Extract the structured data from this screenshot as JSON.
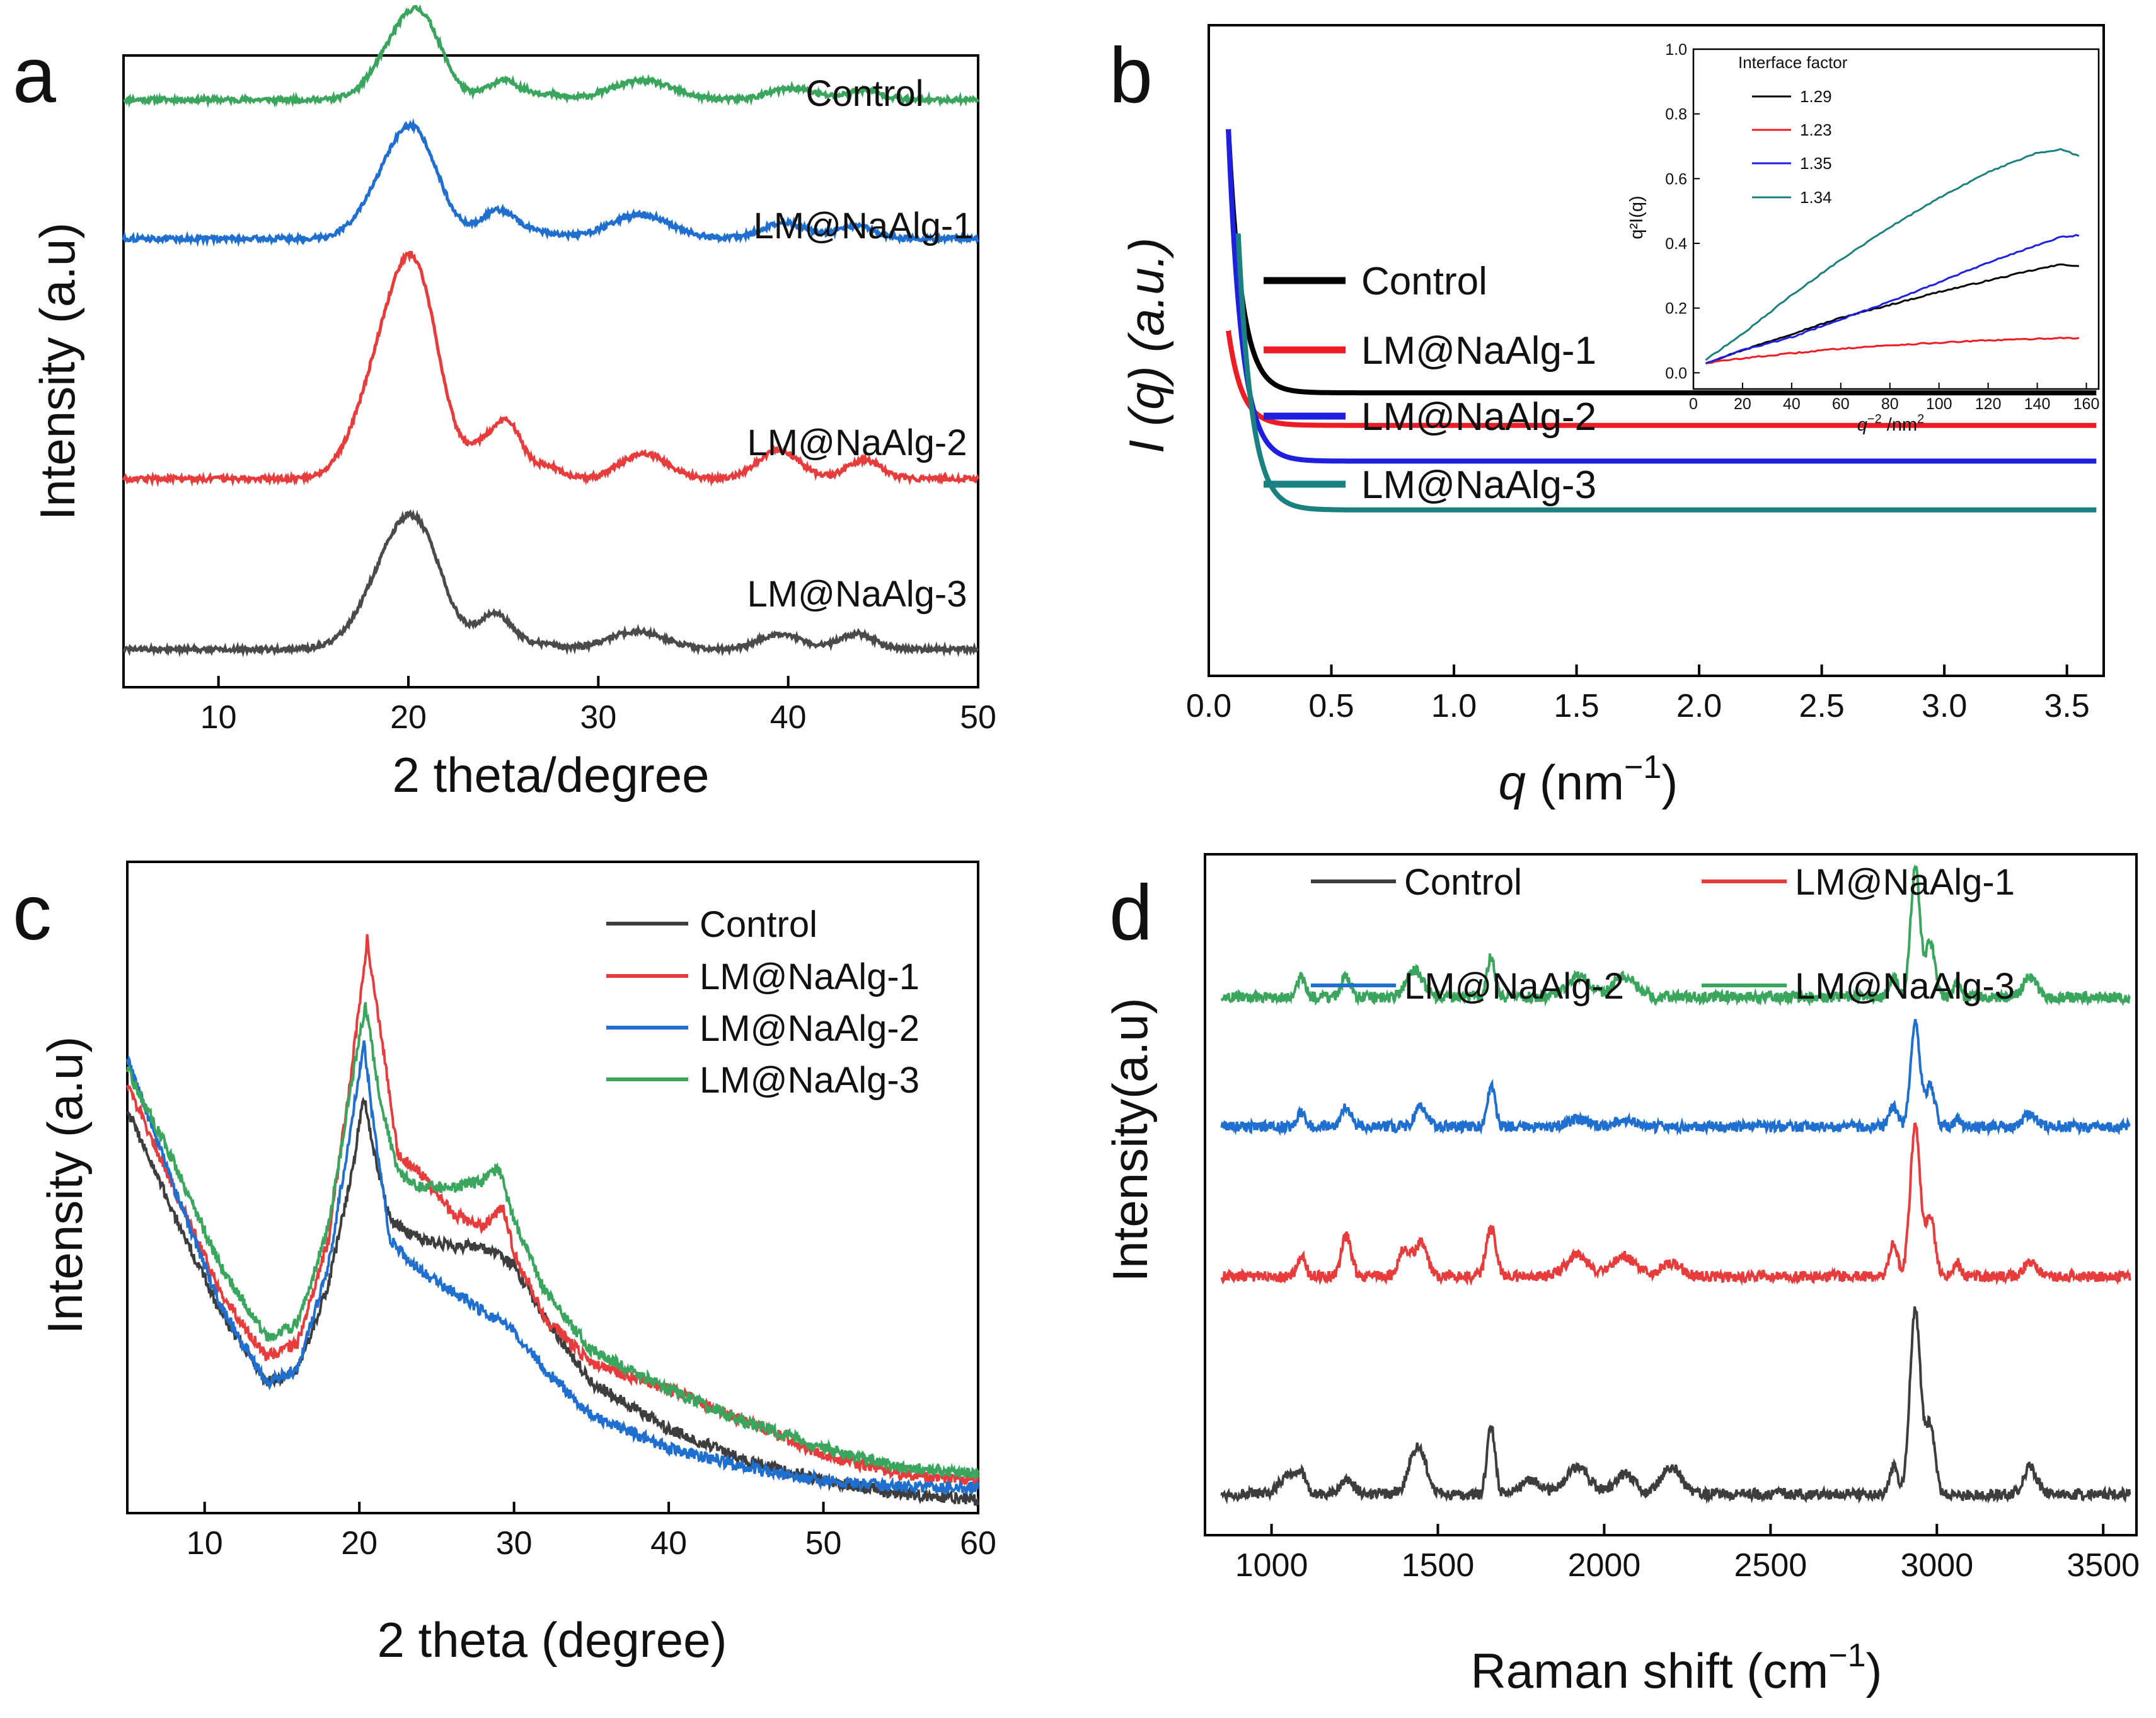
{
  "figure": {
    "panels": [
      "a",
      "b",
      "c",
      "d"
    ]
  },
  "colors": {
    "control_a": "#3aa55c",
    "nalg1_a": "#1f6fd0",
    "nalg2_a": "#e83b3b",
    "nalg3_a": "#4a4a4a",
    "control_b": "#000000",
    "nalg1_b": "#ee1c24",
    "nalg2_b": "#1f1fe0",
    "nalg3_b": "#1a8080",
    "control_c": "#3d3d3d",
    "nalg1_c": "#e83b3b",
    "nalg2_c": "#1f6fd0",
    "nalg3_c": "#3aa55c"
  },
  "chart_data": [
    {
      "id": "a",
      "type": "line",
      "title": "",
      "xlabel": "2 theta/degree",
      "ylabel": "Intensity (a.u)",
      "xlim": [
        5,
        50
      ],
      "xticks": [
        10,
        20,
        30,
        40,
        50
      ],
      "baselines": {
        "Control": 0.93,
        "LM@NaAlg-1": 0.71,
        "LM@NaAlg-2": 0.33,
        "LM@NaAlg-3": 0.06
      },
      "peaks": {
        "Control": [
          [
            19.3,
            0.07,
            1.2
          ],
          [
            20.8,
            0.105,
            1.1
          ],
          [
            25,
            0.03,
            0.9
          ],
          [
            27.2,
            0.008,
            0.8
          ],
          [
            32.3,
            0.03,
            1.6
          ],
          [
            40.2,
            0.018,
            1.2
          ],
          [
            44,
            0.015,
            0.9
          ]
        ],
        "LM@NaAlg-1": [
          [
            19.2,
            0.095,
            1.4
          ],
          [
            20.6,
            0.11,
            1.2
          ],
          [
            24.8,
            0.045,
            1.0
          ],
          [
            27.3,
            0.008,
            0.8
          ],
          [
            32.2,
            0.038,
            1.6
          ],
          [
            39.8,
            0.025,
            1.2
          ],
          [
            43.6,
            0.02,
            0.9
          ]
        ],
        "LM@NaAlg-2": [
          [
            19.0,
            0.2,
            1.5
          ],
          [
            20.6,
            0.22,
            1.2
          ],
          [
            24.2,
            0.055,
            0.9
          ],
          [
            25.4,
            0.065,
            0.7
          ],
          [
            27.3,
            0.02,
            0.7
          ],
          [
            32.4,
            0.04,
            1.2
          ],
          [
            39.5,
            0.045,
            1.1
          ],
          [
            44,
            0.03,
            0.9
          ]
        ],
        "LM@NaAlg-3": [
          [
            19.1,
            0.12,
            1.5
          ],
          [
            20.7,
            0.13,
            1.3
          ],
          [
            24.6,
            0.055,
            0.9
          ],
          [
            27.1,
            0.008,
            0.8
          ],
          [
            32,
            0.028,
            1.5
          ],
          [
            39.6,
            0.025,
            1.1
          ],
          [
            43.6,
            0.025,
            0.9
          ]
        ]
      },
      "labels": [
        "Control",
        "LM@NaAlg-1",
        "LM@NaAlg-2",
        "LM@NaAlg-3"
      ]
    },
    {
      "id": "b",
      "type": "line",
      "xlabel": "q (nm",
      "xlabel_sup": "−1",
      "xlabel_end": ")",
      "ylabel": "I (q) (a.u.)",
      "xlim": [
        0,
        3.65
      ],
      "xticks": [
        "0.0",
        "0.5",
        "1.0",
        "1.5",
        "2.0",
        "2.5",
        "3.0",
        "3.5"
      ],
      "series": [
        {
          "name": "Control",
          "plateau": 0.435,
          "peak_x": 0.08,
          "peak_y": 0.84
        },
        {
          "name": "LM@NaAlg-1",
          "plateau": 0.385,
          "peak_x": 0.08,
          "peak_y": 0.53
        },
        {
          "name": "LM@NaAlg-2",
          "plateau": 0.33,
          "peak_x": 0.08,
          "peak_y": 0.84
        },
        {
          "name": "LM@NaAlg-3",
          "plateau": 0.255,
          "peak_x": 0.12,
          "peak_y": 0.68
        }
      ],
      "legend": [
        "Control",
        "LM@NaAlg-1",
        "LM@NaAlg-2",
        "LM@NaAlg-3"
      ],
      "inset": {
        "xlabel": "q",
        "xlabel_sup": "−2",
        "xlabel_end": " /nm",
        "xlabel_sup2": "2",
        "ylabel": "q²I(q)",
        "xlim": [
          0,
          165
        ],
        "ylim": [
          -0.05,
          1.0
        ],
        "xticks": [
          "0",
          "20",
          "40",
          "60",
          "80",
          "100",
          "120",
          "140",
          "160"
        ],
        "yticks": [
          "0.0",
          "0.2",
          "0.4",
          "0.6",
          "0.8",
          "1.0"
        ],
        "legend_title": "Interface factor",
        "legend": [
          "1.29",
          "1.23",
          "1.35",
          "1.34"
        ],
        "series": [
          {
            "x": [
              5,
              20,
              40,
              60,
              80,
              100,
              120,
              140,
              150,
              157
            ],
            "y": [
              0.03,
              0.07,
              0.12,
              0.17,
              0.21,
              0.25,
              0.285,
              0.32,
              0.335,
              0.33
            ]
          },
          {
            "x": [
              5,
              20,
              40,
              60,
              80,
              100,
              120,
              140,
              150,
              157
            ],
            "y": [
              0.03,
              0.045,
              0.06,
              0.075,
              0.085,
              0.093,
              0.1,
              0.105,
              0.108,
              0.107
            ]
          },
          {
            "x": [
              5,
              20,
              40,
              60,
              80,
              100,
              120,
              140,
              150,
              157
            ],
            "y": [
              0.03,
              0.07,
              0.11,
              0.165,
              0.22,
              0.28,
              0.34,
              0.395,
              0.42,
              0.425
            ]
          },
          {
            "x": [
              5,
              20,
              40,
              60,
              80,
              100,
              120,
              140,
              150,
              157
            ],
            "y": [
              0.04,
              0.12,
              0.24,
              0.35,
              0.45,
              0.54,
              0.62,
              0.68,
              0.69,
              0.67
            ]
          }
        ]
      }
    },
    {
      "id": "c",
      "type": "line",
      "xlabel": "2 theta (degree)",
      "ylabel": "Intensity (a.u)",
      "xlim": [
        5,
        60
      ],
      "xticks": [
        10,
        20,
        30,
        40,
        50,
        60
      ],
      "legend": [
        "Control",
        "LM@NaAlg-1",
        "LM@NaAlg-2",
        "LM@NaAlg-3"
      ],
      "series": [
        {
          "name": "Control",
          "x": [
            5,
            8,
            11,
            14,
            16,
            18,
            19.5,
            20.3,
            21,
            22,
            24,
            26,
            28,
            30,
            32,
            35,
            40,
            45,
            50,
            55,
            60
          ],
          "y": [
            0.62,
            0.46,
            0.31,
            0.2,
            0.22,
            0.35,
            0.52,
            0.64,
            0.55,
            0.45,
            0.42,
            0.41,
            0.41,
            0.38,
            0.3,
            0.2,
            0.13,
            0.08,
            0.05,
            0.03,
            0.02
          ]
        },
        {
          "name": "LM@NaAlg-1",
          "x": [
            5,
            8,
            11,
            14,
            16,
            18,
            19.5,
            20.5,
            21.5,
            22.5,
            24,
            26,
            28,
            29.3,
            30,
            32,
            35,
            40,
            45,
            50,
            55,
            60
          ],
          "y": [
            0.66,
            0.5,
            0.34,
            0.24,
            0.26,
            0.42,
            0.68,
            0.88,
            0.72,
            0.55,
            0.52,
            0.46,
            0.44,
            0.47,
            0.4,
            0.3,
            0.23,
            0.19,
            0.14,
            0.09,
            0.06,
            0.05
          ]
        },
        {
          "name": "LM@NaAlg-2",
          "x": [
            5,
            8,
            11,
            14,
            16,
            18,
            19.5,
            20.3,
            21,
            22,
            24,
            26,
            28,
            30,
            32,
            35,
            40,
            45,
            50,
            55,
            60
          ],
          "y": [
            0.7,
            0.5,
            0.32,
            0.2,
            0.22,
            0.38,
            0.6,
            0.72,
            0.58,
            0.42,
            0.37,
            0.34,
            0.31,
            0.28,
            0.22,
            0.15,
            0.1,
            0.07,
            0.05,
            0.04,
            0.04
          ]
        },
        {
          "name": "LM@NaAlg-3",
          "x": [
            5,
            8,
            11,
            14,
            16,
            18,
            19.5,
            20.4,
            21.3,
            22.5,
            24,
            26,
            28,
            29,
            30,
            32,
            35,
            40,
            45,
            50,
            55,
            60
          ],
          "y": [
            0.68,
            0.54,
            0.38,
            0.27,
            0.29,
            0.44,
            0.66,
            0.78,
            0.64,
            0.52,
            0.5,
            0.5,
            0.51,
            0.53,
            0.45,
            0.34,
            0.25,
            0.19,
            0.14,
            0.1,
            0.07,
            0.06
          ]
        }
      ]
    },
    {
      "id": "d",
      "type": "line",
      "xlabel": "Raman shift (cm",
      "xlabel_sup": "−1",
      "xlabel_end": ")",
      "ylabel": "Intensity(a.u)",
      "xlim": [
        800,
        3600
      ],
      "xticks": [
        1000,
        1500,
        2000,
        2500,
        3000,
        3500
      ],
      "legend": [
        "Control",
        "LM@NaAlg-1",
        "LM@NaAlg-2",
        "LM@NaAlg-3"
      ],
      "baselines": {
        "Control": 0.06,
        "LM@NaAlg-1": 0.38,
        "LM@NaAlg-2": 0.6,
        "LM@NaAlg-3": 0.79
      },
      "peaks": {
        "Control": [
          [
            1050,
            0.03,
            25
          ],
          [
            1090,
            0.025,
            15
          ],
          [
            1230,
            0.02,
            20
          ],
          [
            1440,
            0.07,
            25
          ],
          [
            1660,
            0.1,
            12
          ],
          [
            1780,
            0.02,
            30
          ],
          [
            1920,
            0.04,
            35
          ],
          [
            2060,
            0.03,
            30
          ],
          [
            2200,
            0.04,
            30
          ],
          [
            2870,
            0.04,
            12
          ],
          [
            2935,
            0.27,
            16
          ],
          [
            2980,
            0.1,
            14
          ],
          [
            3280,
            0.04,
            20
          ]
        ],
        "LM@NaAlg-1": [
          [
            1090,
            0.03,
            12
          ],
          [
            1225,
            0.06,
            15
          ],
          [
            1400,
            0.04,
            18
          ],
          [
            1450,
            0.05,
            18
          ],
          [
            1660,
            0.07,
            15
          ],
          [
            1920,
            0.03,
            35
          ],
          [
            2060,
            0.03,
            35
          ],
          [
            2200,
            0.02,
            30
          ],
          [
            2870,
            0.05,
            12
          ],
          [
            2935,
            0.22,
            15
          ],
          [
            2980,
            0.09,
            14
          ],
          [
            3060,
            0.02,
            10
          ],
          [
            3280,
            0.02,
            20
          ]
        ],
        "LM@NaAlg-2": [
          [
            1090,
            0.02,
            12
          ],
          [
            1225,
            0.03,
            14
          ],
          [
            1450,
            0.03,
            18
          ],
          [
            1660,
            0.06,
            12
          ],
          [
            1920,
            0.01,
            30
          ],
          [
            2060,
            0.01,
            30
          ],
          [
            2870,
            0.03,
            12
          ],
          [
            2935,
            0.15,
            14
          ],
          [
            2980,
            0.06,
            14
          ],
          [
            3060,
            0.01,
            10
          ],
          [
            3280,
            0.02,
            20
          ]
        ],
        "LM@NaAlg-3": [
          [
            1090,
            0.03,
            12
          ],
          [
            1225,
            0.03,
            14
          ],
          [
            1430,
            0.04,
            25
          ],
          [
            1660,
            0.06,
            12
          ],
          [
            1920,
            0.03,
            35
          ],
          [
            2060,
            0.03,
            35
          ],
          [
            2870,
            0.03,
            12
          ],
          [
            2935,
            0.19,
            14
          ],
          [
            2980,
            0.08,
            14
          ],
          [
            3060,
            0.02,
            10
          ],
          [
            3280,
            0.03,
            20
          ]
        ]
      }
    }
  ]
}
